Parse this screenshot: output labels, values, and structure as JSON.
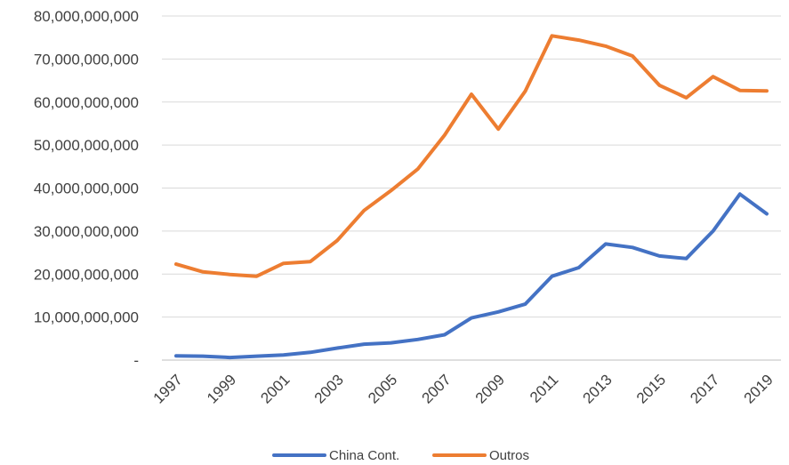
{
  "chart_data": {
    "type": "line",
    "x": [
      1997,
      1998,
      1999,
      2000,
      2001,
      2002,
      2003,
      2004,
      2005,
      2006,
      2007,
      2008,
      2009,
      2010,
      2011,
      2012,
      2013,
      2014,
      2015,
      2016,
      2017,
      2018,
      2019
    ],
    "x_tick_labels": [
      "1997",
      "1999",
      "2001",
      "2003",
      "2005",
      "2007",
      "2009",
      "2011",
      "2013",
      "2015",
      "2017",
      "2019"
    ],
    "series": [
      {
        "name": "China Cont.",
        "color": "#4472c4",
        "values": [
          1000000000,
          900000000,
          600000000,
          900000000,
          1200000000,
          1800000000,
          2800000000,
          3700000000,
          4000000000,
          4800000000,
          5900000000,
          9800000000,
          11200000000,
          13000000000,
          19500000000,
          21500000000,
          27000000000,
          26200000000,
          24200000000,
          23600000000,
          30000000000,
          38600000000,
          34000000000
        ]
      },
      {
        "name": "Outros",
        "color": "#ed7d31",
        "values": [
          22300000000,
          20500000000,
          19900000000,
          19500000000,
          22500000000,
          22900000000,
          27800000000,
          34800000000,
          39400000000,
          44400000000,
          52300000000,
          61800000000,
          53700000000,
          62500000000,
          75400000000,
          74400000000,
          73000000000,
          70700000000,
          63900000000,
          61000000000,
          65900000000,
          62700000000,
          62600000000
        ]
      }
    ],
    "y_ticks": [
      0,
      10000000000,
      20000000000,
      30000000000,
      40000000000,
      50000000000,
      60000000000,
      70000000000,
      80000000000
    ],
    "y_tick_labels": [
      "-",
      "10,000,000,000",
      "20,000,000,000",
      "30,000,000,000",
      "40,000,000,000",
      "50,000,000,000",
      "60,000,000,000",
      "70,000,000,000",
      "80,000,000,000"
    ],
    "ylim": [
      0,
      80000000000
    ],
    "title": "",
    "xlabel": "",
    "ylabel": "",
    "grid": true,
    "legend_position": "bottom"
  }
}
